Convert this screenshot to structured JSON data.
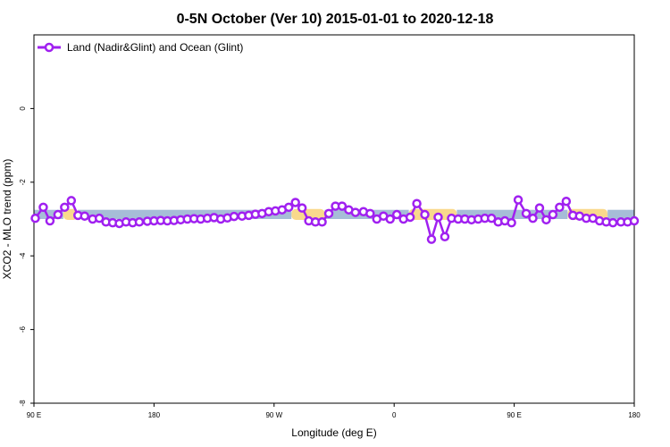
{
  "chart_data": {
    "type": "line",
    "title": "0-5N October (Ver 10)   2015-01-01 to 2020-12-18",
    "xlabel": "Longitude (deg E)",
    "ylabel": "XCO2 - MLO trend (ppm)",
    "x_range_deg_e": [
      90,
      540
    ],
    "y_range": [
      -8,
      2
    ],
    "x_ticks": [
      {
        "value": 90,
        "label": "90 E"
      },
      {
        "value": 180,
        "label": "180"
      },
      {
        "value": 270,
        "label": "90 W"
      },
      {
        "value": 360,
        "label": "0"
      },
      {
        "value": 450,
        "label": "90 E"
      },
      {
        "value": 540,
        "label": "180"
      }
    ],
    "y_ticks": [
      {
        "value": 0,
        "label": "0"
      },
      {
        "value": -2,
        "label": "-2"
      },
      {
        "value": -4,
        "label": "-4"
      },
      {
        "value": -6,
        "label": "-6"
      },
      {
        "value": -8,
        "label": "-8"
      }
    ],
    "reference_band": {
      "y_min": -3.0,
      "y_max": -2.75,
      "color": "#a6bdd7"
    },
    "highlight_bands": [
      {
        "x_min": 112,
        "x_max": 123,
        "color": "#f9d98c"
      },
      {
        "x_min": 283,
        "x_max": 308,
        "color": "#f9d98c"
      },
      {
        "x_min": 371,
        "x_max": 407,
        "color": "#f9d98c"
      },
      {
        "x_min": 490,
        "x_max": 520,
        "color": "#f9d98c"
      }
    ],
    "legend": {
      "position": "top-left"
    },
    "series": [
      {
        "name": "Land (Nadir&Glint) and Ocean (Glint)",
        "color": "#a020f0",
        "x": [
          91,
          97,
          102,
          108,
          113,
          118,
          123,
          128,
          134,
          139,
          144,
          149,
          154,
          159,
          164,
          169,
          175,
          180,
          185,
          190,
          195,
          200,
          205,
          210,
          215,
          220,
          225,
          230,
          235,
          240,
          246,
          251,
          256,
          261,
          266,
          271,
          276,
          281,
          286,
          291,
          296,
          301,
          306,
          311,
          316,
          321,
          326,
          331,
          337,
          342,
          347,
          352,
          357,
          362,
          367,
          372,
          377,
          383,
          388,
          393,
          398,
          403,
          408,
          413,
          418,
          423,
          428,
          433,
          438,
          443,
          448,
          453,
          459,
          464,
          469,
          474,
          479,
          484,
          489,
          494,
          499,
          504,
          509,
          514,
          519,
          524,
          530,
          535,
          540
        ],
        "values": [
          -2.98,
          -2.68,
          -3.05,
          -2.88,
          -2.68,
          -2.5,
          -2.9,
          -2.92,
          -3.0,
          -2.98,
          -3.08,
          -3.1,
          -3.12,
          -3.08,
          -3.1,
          -3.08,
          -3.06,
          -3.05,
          -3.04,
          -3.05,
          -3.04,
          -3.02,
          -3.0,
          -2.99,
          -3.0,
          -2.98,
          -2.96,
          -3.0,
          -2.97,
          -2.93,
          -2.92,
          -2.9,
          -2.87,
          -2.85,
          -2.8,
          -2.78,
          -2.75,
          -2.68,
          -2.55,
          -2.7,
          -3.05,
          -3.08,
          -3.08,
          -2.85,
          -2.65,
          -2.65,
          -2.75,
          -2.82,
          -2.8,
          -2.85,
          -3.0,
          -2.92,
          -3.0,
          -2.88,
          -3.0,
          -2.95,
          -2.58,
          -2.88,
          -3.55,
          -2.95,
          -3.48,
          -2.98,
          -3.0,
          -3.0,
          -3.02,
          -3.0,
          -2.98,
          -2.98,
          -3.08,
          -3.05,
          -3.1,
          -2.48,
          -2.85,
          -2.98,
          -2.7,
          -3.02,
          -2.88,
          -2.68,
          -2.52,
          -2.9,
          -2.92,
          -2.98,
          -2.98,
          -3.05,
          -3.08,
          -3.1,
          -3.08,
          -3.08,
          -3.05
        ]
      }
    ]
  }
}
